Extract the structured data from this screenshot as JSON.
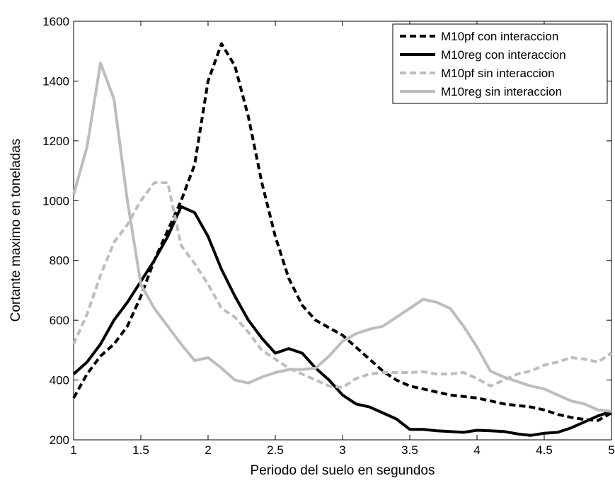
{
  "chart_data": {
    "type": "line",
    "xlabel": "Periodo del suelo en segundos",
    "ylabel": "Cortante maximo en toneladas",
    "x": [
      1,
      1.1,
      1.2,
      1.3,
      1.4,
      1.5,
      1.6,
      1.7,
      1.8,
      1.9,
      2,
      2.1,
      2.2,
      2.3,
      2.4,
      2.5,
      2.6,
      2.7,
      2.8,
      2.9,
      3,
      3.1,
      3.2,
      3.3,
      3.4,
      3.5,
      3.6,
      3.7,
      3.8,
      3.9,
      4,
      4.1,
      4.2,
      4.3,
      4.4,
      4.5,
      4.6,
      4.7,
      4.8,
      4.9,
      5
    ],
    "xlim": [
      1,
      5
    ],
    "xticks": [
      1,
      1.5,
      2,
      2.5,
      3,
      3.5,
      4,
      4.5,
      5
    ],
    "ylim": [
      200,
      1600
    ],
    "yticks": [
      200,
      400,
      600,
      800,
      1000,
      1200,
      1400,
      1600
    ],
    "grid": false,
    "legend": "upper right",
    "series": [
      {
        "name": "M10pf con interaccion",
        "color": "#000000",
        "style": "dashed",
        "values": [
          340,
          420,
          480,
          520,
          580,
          680,
          800,
          900,
          1000,
          1120,
          1400,
          1525,
          1450,
          1280,
          1060,
          880,
          740,
          650,
          600,
          575,
          550,
          510,
          470,
          430,
          400,
          380,
          370,
          360,
          350,
          345,
          340,
          330,
          320,
          315,
          310,
          300,
          285,
          275,
          268,
          265,
          290
        ]
      },
      {
        "name": "M10reg con interaccion",
        "color": "#000000",
        "style": "solid",
        "values": [
          420,
          460,
          520,
          600,
          660,
          730,
          800,
          880,
          980,
          960,
          880,
          770,
          680,
          600,
          540,
          490,
          505,
          490,
          440,
          400,
          350,
          320,
          310,
          290,
          270,
          235,
          235,
          230,
          228,
          225,
          232,
          230,
          228,
          220,
          215,
          222,
          225,
          240,
          260,
          280,
          295
        ]
      },
      {
        "name": "M10pf sin interaccion",
        "color": "#bdbdbd",
        "style": "dashed",
        "values": [
          520,
          620,
          750,
          860,
          920,
          1000,
          1060,
          1060,
          850,
          790,
          720,
          640,
          610,
          560,
          500,
          470,
          440,
          420,
          400,
          380,
          375,
          405,
          420,
          425,
          425,
          425,
          428,
          420,
          420,
          425,
          405,
          380,
          400,
          420,
          430,
          450,
          460,
          475,
          470,
          460,
          490
        ]
      },
      {
        "name": "M10reg sin interaccion",
        "color": "#bdbdbd",
        "style": "solid",
        "values": [
          1020,
          1180,
          1460,
          1340,
          1000,
          720,
          640,
          580,
          520,
          465,
          475,
          440,
          400,
          390,
          410,
          425,
          435,
          435,
          440,
          480,
          530,
          555,
          570,
          580,
          610,
          640,
          670,
          660,
          640,
          580,
          510,
          430,
          410,
          395,
          380,
          370,
          350,
          330,
          320,
          300,
          295
        ]
      }
    ]
  }
}
